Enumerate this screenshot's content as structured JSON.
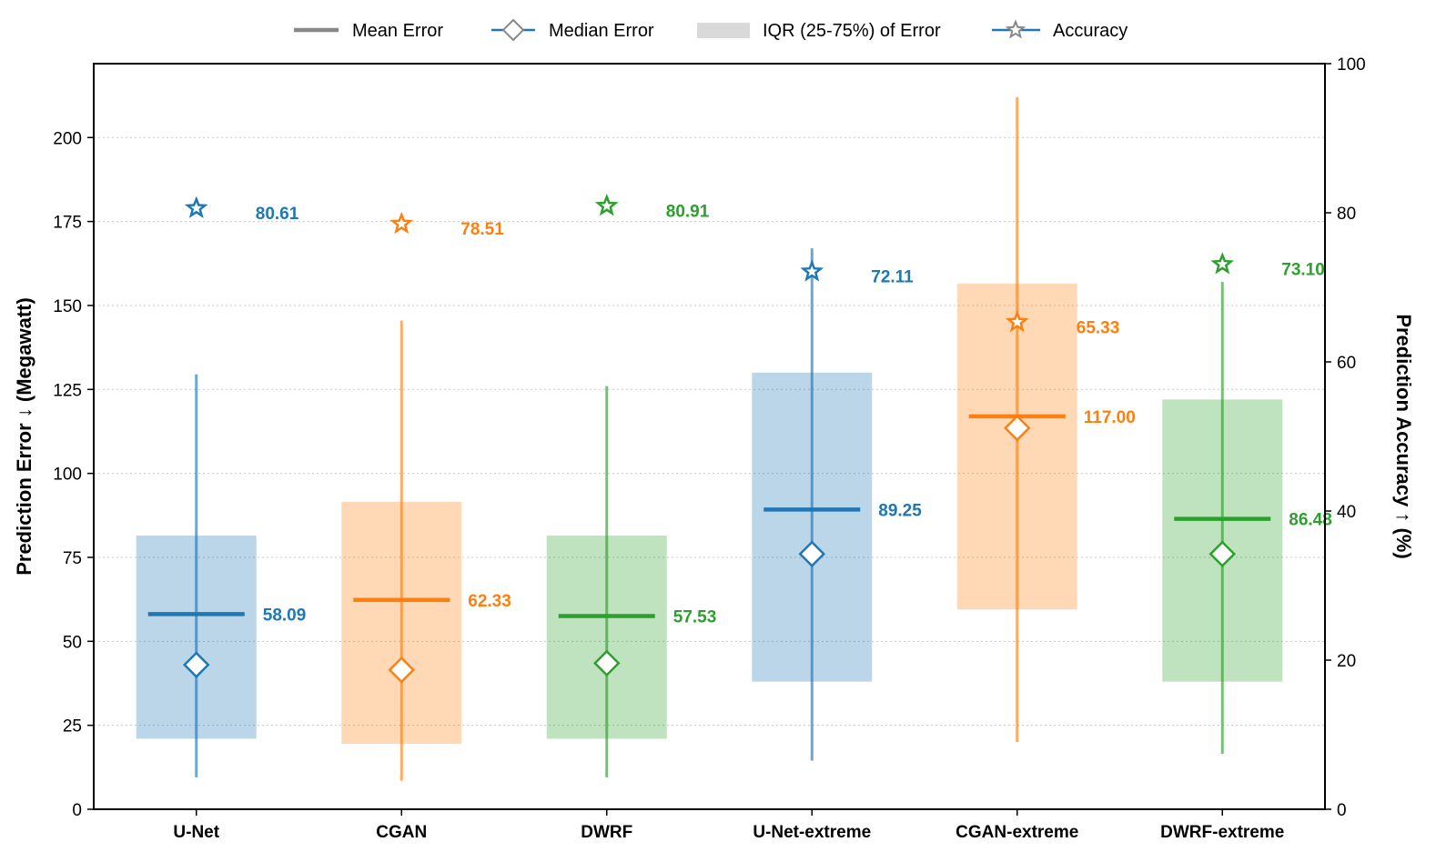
{
  "chart_data": {
    "type": "box-summary",
    "categories": [
      "U-Net",
      "CGAN",
      "DWRF",
      "U-Net-extreme",
      "CGAN-extreme",
      "DWRF-extreme"
    ],
    "colors": [
      "#1f77b4",
      "#ff7f0e",
      "#2ca02c",
      "#1f77b4",
      "#ff7f0e",
      "#2ca02c"
    ],
    "series": [
      {
        "name": "Mean Error",
        "values": [
          58.09,
          62.33,
          57.53,
          89.25,
          117.0,
          86.48
        ]
      },
      {
        "name": "Median Error",
        "values": [
          43,
          41.5,
          43.5,
          76,
          113.5,
          76
        ]
      },
      {
        "name": "IQR (25-75%) of Error",
        "low": [
          21,
          19.5,
          21,
          38,
          59.5,
          38
        ],
        "high": [
          81.5,
          91.5,
          81.5,
          130,
          156.5,
          122
        ]
      },
      {
        "name": "Error Range",
        "low": [
          9.5,
          8.5,
          9.5,
          14.5,
          20,
          16.5
        ],
        "high": [
          129.5,
          145.5,
          126,
          167,
          212,
          157
        ]
      },
      {
        "name": "Accuracy",
        "values": [
          80.61,
          78.51,
          80.91,
          72.11,
          65.33,
          73.1
        ]
      }
    ],
    "mean_labels": [
      "58.09",
      "62.33",
      "57.53",
      "89.25",
      "117.00",
      "86.48"
    ],
    "accuracy_labels": [
      "80.61",
      "78.51",
      "80.91",
      "72.11",
      "65.33",
      "73.10"
    ],
    "ylabel": "Prediction Error ↓ (Megawatt)",
    "y2label": "Prediction Accuracy ↑ (%)",
    "ylim": [
      0,
      222
    ],
    "y2lim": [
      0,
      100
    ],
    "yticks": [
      0,
      25,
      50,
      75,
      100,
      125,
      150,
      175,
      200
    ],
    "ytick_labels": [
      "0",
      "25",
      "50",
      "75",
      "100",
      "125",
      "150",
      "175",
      "200"
    ],
    "y2ticks": [
      0,
      20,
      40,
      60,
      80,
      100
    ],
    "y2tick_labels": [
      "0",
      "20",
      "40",
      "60",
      "80",
      "100"
    ],
    "grid": true,
    "legend": {
      "placement": "top-center",
      "items": [
        "Mean Error",
        "Median Error",
        "IQR (25-75%) of Error",
        "Accuracy"
      ]
    }
  }
}
